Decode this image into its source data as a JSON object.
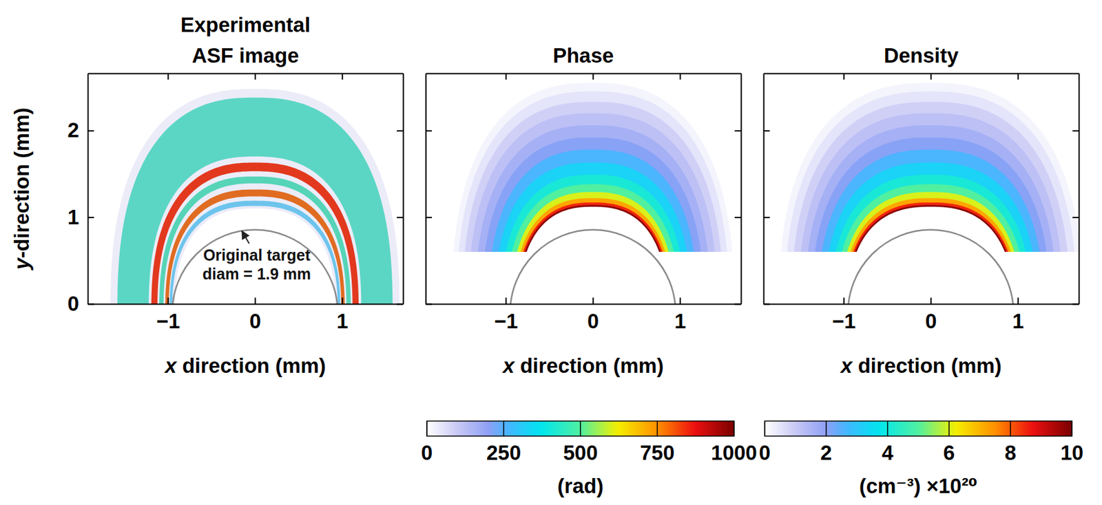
{
  "chart_data": [
    {
      "type": "rings",
      "title": [
        "Experimental",
        "ASF image"
      ],
      "xlabel": "x direction (mm)",
      "ylabel": "y-direction (mm)",
      "xlim": [
        -1.92,
        1.7
      ],
      "ylim": [
        0,
        2.66
      ],
      "xticks": [
        {
          "value": -1,
          "label": "−1"
        },
        0,
        1
      ],
      "yticks": [
        0,
        1,
        2
      ],
      "target": {
        "center_x": 0,
        "center_y": -0.1,
        "diameter": 1.9
      },
      "base_y": 0,
      "rings": [
        {
          "outer_top": 2.48,
          "outer_half_width": 1.66,
          "inner_top": 1.1,
          "inner_half_width": 0.92,
          "color": "#ececf9"
        },
        {
          "outer_top": 2.38,
          "outer_half_width": 1.58,
          "inner_top": 1.7,
          "inner_half_width": 1.22,
          "color": "#5cd6c4"
        },
        {
          "outer_top": 1.63,
          "outer_half_width": 1.19,
          "inner_top": 1.53,
          "inner_half_width": 1.12,
          "color": "#e2381e"
        },
        {
          "outer_top": 1.47,
          "outer_half_width": 1.1,
          "inner_top": 1.39,
          "inner_half_width": 1.05,
          "color": "#56d4b8"
        },
        {
          "outer_top": 1.32,
          "outer_half_width": 1.03,
          "inner_top": 1.24,
          "inner_half_width": 0.99,
          "color": "#e06c22"
        },
        {
          "outer_top": 1.19,
          "outer_half_width": 0.98,
          "inner_top": 1.13,
          "inner_half_width": 0.95,
          "color": "#6cc4ec"
        }
      ],
      "annotation": {
        "lines": [
          "Original target",
          "diam = 1.9 mm"
        ],
        "x": 0.02,
        "y": 0.5,
        "arrow_to": [
          -0.15,
          0.84
        ]
      }
    },
    {
      "type": "contour",
      "title": [
        "Phase"
      ],
      "xlabel": "x direction (mm)",
      "xlim": [
        -1.92,
        1.7
      ],
      "ylim": [
        0,
        2.66
      ],
      "xticks": [
        {
          "value": -1,
          "label": "−1"
        },
        0,
        1
      ],
      "yticks": [
        0,
        1,
        2
      ],
      "tick_labels": "x",
      "target": {
        "center_x": 0,
        "center_y": -0.1,
        "diameter": 1.9
      },
      "base_y": 0.6,
      "contours": [
        {
          "value": 20,
          "top": 2.55,
          "half_width": 1.6
        },
        {
          "value": 50,
          "top": 2.45,
          "half_width": 1.54
        },
        {
          "value": 85,
          "top": 2.33,
          "half_width": 1.47
        },
        {
          "value": 120,
          "top": 2.2,
          "half_width": 1.4
        },
        {
          "value": 160,
          "top": 2.06,
          "half_width": 1.32
        },
        {
          "value": 205,
          "top": 1.92,
          "half_width": 1.24
        },
        {
          "value": 260,
          "top": 1.78,
          "half_width": 1.16
        },
        {
          "value": 330,
          "top": 1.63,
          "half_width": 1.08
        },
        {
          "value": 410,
          "top": 1.49,
          "half_width": 1.0
        },
        {
          "value": 500,
          "top": 1.38,
          "half_width": 0.93
        },
        {
          "value": 600,
          "top": 1.29,
          "half_width": 0.87
        },
        {
          "value": 720,
          "top": 1.22,
          "half_width": 0.83
        },
        {
          "value": 850,
          "top": 1.17,
          "half_width": 0.8
        },
        {
          "value": 980,
          "top": 1.14,
          "half_width": 0.78
        }
      ],
      "inner_edge": {
        "top": 1.12,
        "half_width": 0.76
      },
      "colorbar": {
        "range": [
          0,
          1000
        ],
        "ticks": [
          0,
          250,
          500,
          750,
          1000
        ],
        "label": "(rad)"
      }
    },
    {
      "type": "contour",
      "title": [
        "Density"
      ],
      "xlabel": "x direction (mm)",
      "xlim": [
        -1.92,
        1.7
      ],
      "ylim": [
        0,
        2.66
      ],
      "xticks": [
        {
          "value": -1,
          "label": "−1"
        },
        0,
        1
      ],
      "yticks": [
        0,
        1,
        2
      ],
      "tick_labels": "x",
      "target": {
        "center_x": 0,
        "center_y": -0.1,
        "diameter": 1.9
      },
      "base_y": 0.6,
      "contours": [
        {
          "value": 0.2,
          "top": 2.55,
          "half_width": 1.72
        },
        {
          "value": 0.5,
          "top": 2.45,
          "half_width": 1.65
        },
        {
          "value": 0.85,
          "top": 2.33,
          "half_width": 1.57
        },
        {
          "value": 1.2,
          "top": 2.2,
          "half_width": 1.49
        },
        {
          "value": 1.6,
          "top": 2.06,
          "half_width": 1.41
        },
        {
          "value": 2.05,
          "top": 1.92,
          "half_width": 1.33
        },
        {
          "value": 2.6,
          "top": 1.78,
          "half_width": 1.25
        },
        {
          "value": 3.3,
          "top": 1.63,
          "half_width": 1.17
        },
        {
          "value": 4.1,
          "top": 1.49,
          "half_width": 1.09
        },
        {
          "value": 5.0,
          "top": 1.38,
          "half_width": 1.02
        },
        {
          "value": 6.0,
          "top": 1.29,
          "half_width": 0.96
        },
        {
          "value": 7.2,
          "top": 1.22,
          "half_width": 0.92
        },
        {
          "value": 8.5,
          "top": 1.17,
          "half_width": 0.89
        },
        {
          "value": 9.8,
          "top": 1.14,
          "half_width": 0.87
        }
      ],
      "inner_edge": {
        "top": 1.12,
        "half_width": 0.85
      },
      "colorbar": {
        "range": [
          0,
          10
        ],
        "ticks": [
          0,
          2,
          4,
          6,
          8,
          10
        ],
        "label": "(cm⁻³) ×10²⁰"
      }
    }
  ]
}
